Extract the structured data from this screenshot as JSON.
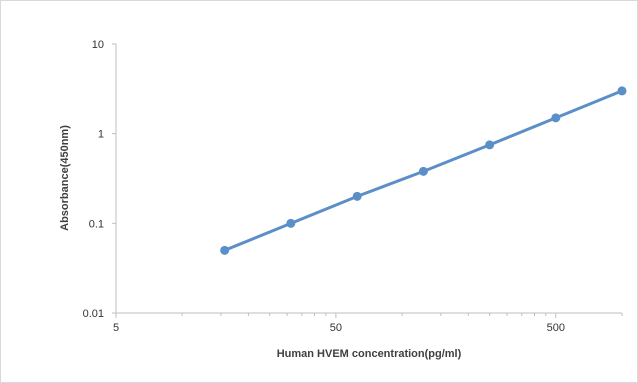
{
  "chart_data": {
    "type": "line",
    "title": "",
    "xlabel": "Human HVEM  concentration(pg/ml)",
    "ylabel": "Absorbance(450nm)",
    "x_scale": "log",
    "y_scale": "log",
    "xlim": [
      5,
      1000
    ],
    "ylim": [
      0.01,
      10
    ],
    "x_tick_labels": [
      "5",
      "50",
      "500"
    ],
    "y_tick_labels": [
      "10",
      "1",
      "0.1",
      "0.01"
    ],
    "grid": false,
    "legend": "none",
    "line_color": "#5b8fc7",
    "marker_color": "#5b8fc7",
    "series": [
      {
        "x": [
          15.6,
          31.2,
          62.5,
          125,
          250,
          500,
          1000
        ],
        "y": [
          0.05,
          0.1,
          0.2,
          0.38,
          0.75,
          1.5,
          3.0
        ]
      }
    ]
  }
}
